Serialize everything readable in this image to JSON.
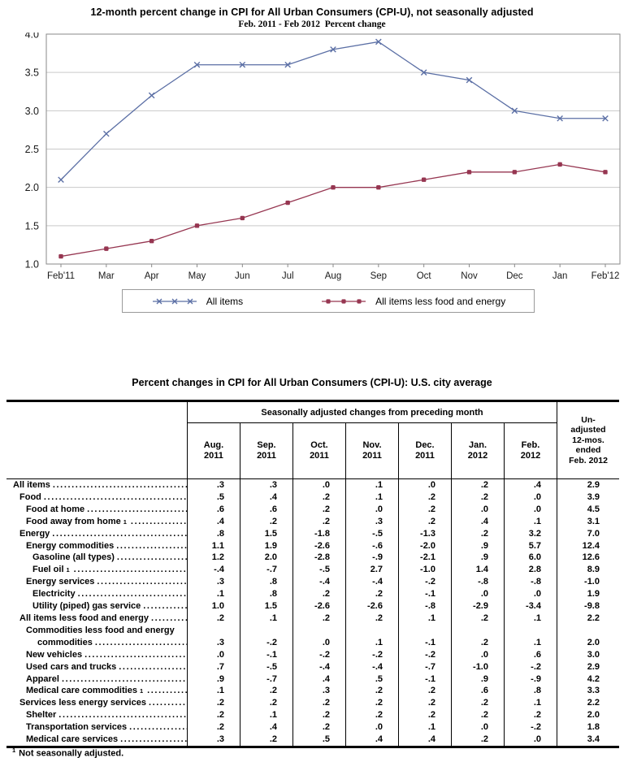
{
  "chart_data": {
    "type": "line",
    "title": "12-month percent change in CPI for All Urban Consumers (CPI-U), not seasonally adjusted",
    "subtitle": "Feb. 2011 - Feb 2012  Percent change",
    "categories": [
      "Feb'11",
      "Mar",
      "Apr",
      "May",
      "Jun",
      "Jul",
      "Aug",
      "Sep",
      "Oct",
      "Nov",
      "Dec",
      "Jan",
      "Feb'12"
    ],
    "series": [
      {
        "name": "All items",
        "marker": "x",
        "color": "#5b6fa5",
        "values": [
          2.1,
          2.7,
          3.2,
          3.6,
          3.6,
          3.6,
          3.8,
          3.9,
          3.5,
          3.4,
          3.0,
          2.9,
          2.9
        ]
      },
      {
        "name": "All items less food and energy",
        "marker": "square",
        "color": "#963651",
        "values": [
          1.1,
          1.2,
          1.3,
          1.5,
          1.6,
          1.8,
          2.0,
          2.0,
          2.1,
          2.2,
          2.2,
          2.3,
          2.2
        ]
      }
    ],
    "ylim": [
      1.0,
      4.0
    ],
    "yticks": [
      1.0,
      1.5,
      2.0,
      2.5,
      3.0,
      3.5,
      4.0
    ],
    "grid": true,
    "legend_position": "bottom"
  },
  "table": {
    "title": "Percent changes in CPI for All Urban Consumers (CPI-U): U.S. city average",
    "group_header": "Seasonally adjusted changes from preceding month",
    "columns": [
      "Aug.\n2011",
      "Sep.\n2011",
      "Oct.\n2011",
      "Nov.\n2011",
      "Dec.\n2011",
      "Jan.\n2012",
      "Feb.\n2012"
    ],
    "last_column_header": "Un-\nadjusted\n12-mos.\nended\nFeb. 2012",
    "rows": [
      {
        "label": "All items",
        "indent": 0,
        "values": [
          ".3",
          ".3",
          ".0",
          ".1",
          ".0",
          ".2",
          ".4",
          "2.9"
        ]
      },
      {
        "label": "Food",
        "indent": 1,
        "values": [
          ".5",
          ".4",
          ".2",
          ".1",
          ".2",
          ".2",
          ".0",
          "3.9"
        ]
      },
      {
        "label": "Food at home",
        "indent": 2,
        "values": [
          ".6",
          ".6",
          ".2",
          ".0",
          ".2",
          ".0",
          ".0",
          "4.5"
        ]
      },
      {
        "label": "Food away from home",
        "sup": "1",
        "indent": 2,
        "values": [
          ".4",
          ".2",
          ".2",
          ".3",
          ".2",
          ".4",
          ".1",
          "3.1"
        ]
      },
      {
        "label": "Energy",
        "indent": 1,
        "values": [
          ".8",
          "1.5",
          "-1.8",
          "-.5",
          "-1.3",
          ".2",
          "3.2",
          "7.0"
        ]
      },
      {
        "label": "Energy commodities",
        "indent": 2,
        "values": [
          "1.1",
          "1.9",
          "-2.6",
          "-.6",
          "-2.0",
          ".9",
          "5.7",
          "12.4"
        ]
      },
      {
        "label": "Gasoline (all types)",
        "indent": 3,
        "values": [
          "1.2",
          "2.0",
          "-2.8",
          "-.9",
          "-2.1",
          ".9",
          "6.0",
          "12.6"
        ]
      },
      {
        "label": "Fuel oil",
        "sup": "1",
        "indent": 3,
        "values": [
          "-.4",
          "-.7",
          "-.5",
          "2.7",
          "-1.0",
          "1.4",
          "2.8",
          "8.9"
        ]
      },
      {
        "label": "Energy services",
        "indent": 2,
        "values": [
          ".3",
          ".8",
          "-.4",
          "-.4",
          "-.2",
          "-.8",
          "-.8",
          "-1.0"
        ]
      },
      {
        "label": "Electricity",
        "indent": 3,
        "values": [
          ".1",
          ".8",
          ".2",
          ".2",
          "-.1",
          ".0",
          ".0",
          "1.9"
        ]
      },
      {
        "label": "Utility (piped) gas service",
        "indent": 3,
        "values": [
          "1.0",
          "1.5",
          "-2.6",
          "-2.6",
          "-.8",
          "-2.9",
          "-3.4",
          "-9.8"
        ]
      },
      {
        "label": "All items less food and energy",
        "indent": 1,
        "values": [
          ".2",
          ".1",
          ".2",
          ".2",
          ".1",
          ".2",
          ".1",
          "2.2"
        ]
      },
      {
        "label": "Commodities less food and energy",
        "label2": "commodities",
        "indent": 2,
        "values": [
          ".3",
          "-.2",
          ".0",
          ".1",
          "-.1",
          ".2",
          ".1",
          "2.0"
        ]
      },
      {
        "label": "New vehicles",
        "indent": 2,
        "values": [
          ".0",
          "-.1",
          "-.2",
          "-.2",
          "-.2",
          ".0",
          ".6",
          "3.0"
        ]
      },
      {
        "label": "Used cars and trucks",
        "indent": 2,
        "values": [
          ".7",
          "-.5",
          "-.4",
          "-.4",
          "-.7",
          "-1.0",
          "-.2",
          "2.9"
        ]
      },
      {
        "label": "Apparel",
        "indent": 2,
        "values": [
          ".9",
          "-.7",
          ".4",
          ".5",
          "-.1",
          ".9",
          "-.9",
          "4.2"
        ]
      },
      {
        "label": "Medical care commodities",
        "sup": "1",
        "indent": 2,
        "values": [
          ".1",
          ".2",
          ".3",
          ".2",
          ".2",
          ".6",
          ".8",
          "3.3"
        ]
      },
      {
        "label": "Services less energy services",
        "indent": 1,
        "values": [
          ".2",
          ".2",
          ".2",
          ".2",
          ".2",
          ".2",
          ".1",
          "2.2"
        ]
      },
      {
        "label": "Shelter",
        "indent": 2,
        "values": [
          ".2",
          ".1",
          ".2",
          ".2",
          ".2",
          ".2",
          ".2",
          "2.0"
        ]
      },
      {
        "label": "Transportation services",
        "indent": 2,
        "values": [
          ".2",
          ".4",
          ".2",
          ".0",
          ".1",
          ".0",
          "-.2",
          "1.8"
        ]
      },
      {
        "label": "Medical care services",
        "indent": 2,
        "values": [
          ".3",
          ".2",
          ".5",
          ".4",
          ".4",
          ".2",
          ".0",
          "3.4"
        ]
      }
    ],
    "footnote": {
      "sup": "1",
      "text": "Not seasonally adjusted."
    }
  }
}
